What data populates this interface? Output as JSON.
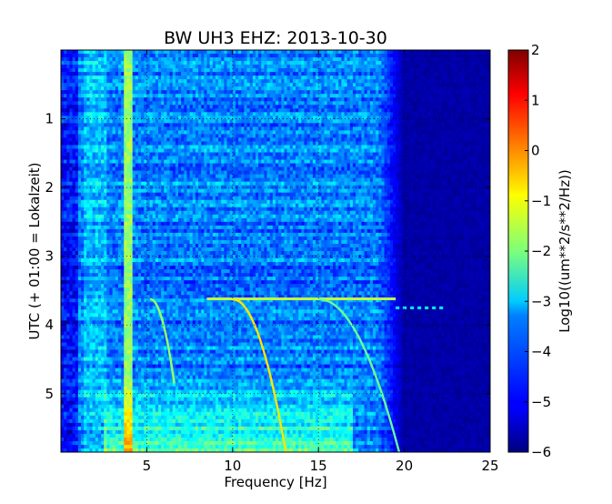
{
  "chart_data": {
    "type": "heatmap",
    "title": "BW UH3 EHZ: 2013-10-30",
    "xlabel": "Frequency [Hz]",
    "ylabel": "UTC (+ 01:00 = Lokalzeit)",
    "xlim": [
      0,
      25
    ],
    "ylim": [
      5.85,
      0
    ],
    "xticks": [
      5,
      10,
      15,
      20,
      25
    ],
    "yticks": [
      1,
      2,
      3,
      4,
      5
    ],
    "grid": true,
    "colorbar": {
      "label": "Log10((um**2/s**2/Hz))",
      "range": [
        -6,
        2
      ],
      "ticks": [
        2,
        1,
        0,
        -1,
        -2,
        -3,
        -4,
        -5,
        -6
      ],
      "colormap": "jet"
    },
    "features": {
      "background_level": -4.0,
      "rolloff_hz": 18.5,
      "noise_floor_level": -5.7,
      "bright_column_hz": 3.9,
      "bright_column_level": -1.8,
      "low_freq_band_hz": 2.0,
      "low_freq_band_level": -3.2,
      "chirp_start_time": 3.62,
      "chirps": [
        {
          "name": "harmonic-1",
          "start_hz": 5.2,
          "end_hz": 6.6,
          "end_time": 4.85,
          "level": -1.8
        },
        {
          "name": "harmonic-2",
          "start_hz": 10.0,
          "end_hz": 13.1,
          "end_time": 5.85,
          "level": -0.8
        },
        {
          "name": "harmonic-3",
          "start_hz": 15.0,
          "end_hz": 19.7,
          "end_time": 5.85,
          "level": -2.2
        }
      ],
      "horizontal_trace": [
        {
          "from_hz": 8.5,
          "to_hz": 19.5,
          "time": 3.62,
          "level": -1.5
        },
        {
          "from_hz": 19.5,
          "to_hz": 22.3,
          "time": 3.75,
          "level": -3.0
        }
      ]
    }
  }
}
